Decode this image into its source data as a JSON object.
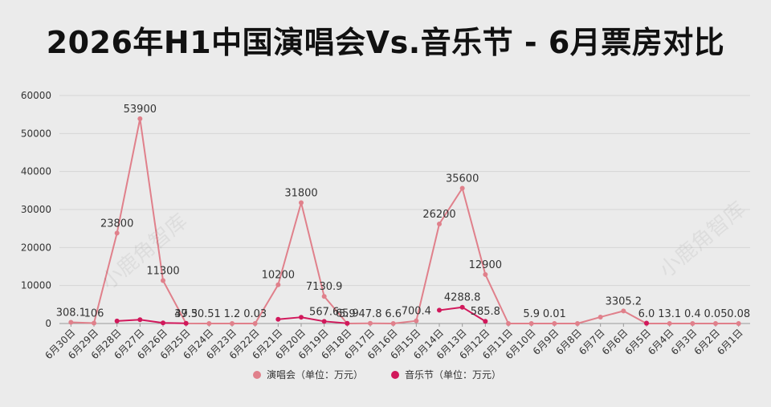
{
  "chart_data": {
    "type": "line",
    "title": "2026年H1中国演唱会Vs.音乐节 - 6月票房对比",
    "xlabel": "",
    "ylabel": "",
    "categories": [
      "6月30日",
      "6月29日",
      "6月28日",
      "6月27日",
      "6月26日",
      "6月25日",
      "6月24日",
      "6月23日",
      "6月22日",
      "6月21日",
      "6月20日",
      "6月19日",
      "6月18日",
      "6月17日",
      "6月16日",
      "6月15日",
      "6月14日",
      "6月13日",
      "6月12日",
      "6月11日",
      "6月10日",
      "6月9日",
      "6月8日",
      "6月7日",
      "6月6日",
      "6月5日",
      "6月4日",
      "6月3日",
      "6月2日",
      "6月1日"
    ],
    "ylim": [
      0,
      60000
    ],
    "yticks": [
      0,
      10000,
      20000,
      30000,
      40000,
      50000,
      60000
    ],
    "grid": true,
    "legend_position": "bottom",
    "series": [
      {
        "name": "演唱会（单位：万元）",
        "color": "#e0808b",
        "values": [
          308.1,
          106,
          23800,
          53900,
          11300,
          37.5,
          0.51,
          1.2,
          0.03,
          10200,
          31800,
          7130.9,
          5.9,
          47.8,
          6.6,
          700.4,
          26200,
          35600,
          12900,
          0,
          5.9,
          0.01,
          0,
          1700,
          3305.2,
          6.0,
          13.1,
          0.4,
          0.05,
          0.08
        ],
        "labels": [
          "308.1",
          "106",
          "23800",
          "53900",
          "11300",
          "37.5",
          "0.51",
          "1.2",
          "0.03",
          "10200",
          "31800",
          "7130.9",
          "5.9",
          "47.8",
          "6.6",
          "700.4",
          "26200",
          "35600",
          "12900",
          "",
          "5.9",
          "0.01",
          "",
          "",
          "3305.2",
          "6.0",
          "13.1",
          "0.4",
          "0.05",
          "0.08"
        ]
      },
      {
        "name": "音乐节（单位：万元）",
        "color": "#d1185b",
        "values": [
          null,
          null,
          650,
          1000,
          150,
          49.3,
          null,
          null,
          null,
          1100,
          1650,
          567.6,
          65.9,
          null,
          null,
          null,
          3500,
          4288.8,
          585.8,
          null,
          null,
          null,
          null,
          null,
          null,
          100,
          null,
          null,
          null,
          null
        ],
        "labels": [
          "",
          "",
          "",
          "",
          "",
          "49.3",
          "",
          "",
          "",
          "",
          "",
          "567.6",
          "65.9",
          "",
          "",
          "",
          "",
          "4288.8",
          "585.8",
          "",
          "",
          "",
          "",
          "",
          "",
          "",
          "",
          "",
          "",
          ""
        ]
      }
    ]
  },
  "watermark": "小鹿角智库"
}
